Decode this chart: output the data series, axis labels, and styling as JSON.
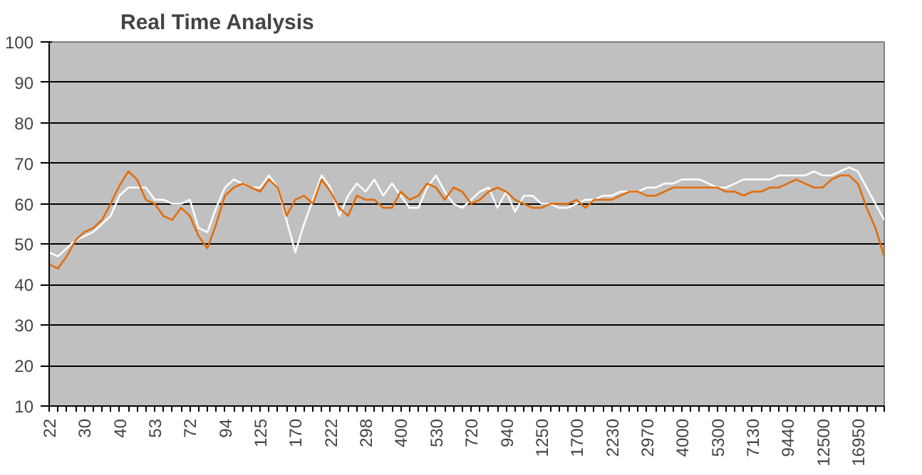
{
  "chart_data": {
    "type": "line",
    "title": "Real Time Analysis",
    "categories": [
      "22",
      null,
      null,
      null,
      "30",
      null,
      null,
      null,
      "40",
      null,
      null,
      null,
      "53",
      null,
      null,
      null,
      "72",
      null,
      null,
      null,
      "94",
      null,
      null,
      null,
      "125",
      null,
      null,
      null,
      "170",
      null,
      null,
      null,
      "222",
      null,
      null,
      null,
      "298",
      null,
      null,
      null,
      "400",
      null,
      null,
      null,
      "530",
      null,
      null,
      null,
      "720",
      null,
      null,
      null,
      "940",
      null,
      null,
      null,
      "1250",
      null,
      null,
      null,
      "1700",
      null,
      null,
      null,
      "2230",
      null,
      null,
      null,
      "2970",
      null,
      null,
      null,
      "4000",
      null,
      null,
      null,
      "5300",
      null,
      null,
      null,
      "7130",
      null,
      null,
      null,
      "9440",
      null,
      null,
      null,
      "12500",
      null,
      null,
      null,
      "16950",
      null,
      null,
      null
    ],
    "series": [
      {
        "color": "#ffffff",
        "values": [
          48,
          47,
          49,
          51,
          52,
          53,
          55,
          57,
          62,
          64,
          64,
          64,
          61,
          61,
          60,
          60,
          61,
          54,
          53,
          59,
          64,
          66,
          65,
          64,
          64,
          67,
          64,
          56,
          48,
          55,
          61,
          67,
          64,
          57,
          62,
          65,
          63,
          66,
          62,
          65,
          62,
          59,
          59,
          64,
          67,
          63,
          60,
          59,
          61,
          63,
          64,
          59,
          63,
          58,
          62,
          62,
          60,
          60,
          59,
          59,
          60,
          61,
          61,
          62,
          62,
          63,
          63,
          63,
          64,
          64,
          65,
          65,
          66,
          66,
          66,
          65,
          64,
          64,
          65,
          66,
          66,
          66,
          66,
          67,
          67,
          67,
          67,
          68,
          67,
          67,
          68,
          69,
          68,
          64,
          60,
          56
        ]
      },
      {
        "color": "#e36c09",
        "values": [
          45,
          44,
          47,
          51,
          53,
          54,
          56,
          60,
          64.5,
          68,
          66,
          61,
          60,
          57,
          56,
          59,
          57,
          52,
          49,
          55,
          62,
          64,
          65,
          64,
          63,
          66,
          64,
          57,
          61,
          62,
          60,
          66,
          63,
          59,
          57,
          62,
          61,
          61,
          59,
          59,
          63,
          61,
          62,
          65,
          64,
          61,
          64,
          63,
          60,
          61,
          63,
          64,
          63,
          61,
          60,
          59,
          59,
          60,
          60,
          60,
          61,
          59,
          61,
          61,
          61,
          62,
          63,
          63,
          62,
          62,
          63,
          64,
          64,
          64,
          64,
          64,
          64,
          63,
          63,
          62,
          63,
          63,
          64,
          64,
          65,
          66,
          65,
          64,
          64,
          66,
          67,
          67,
          65,
          59,
          54,
          47
        ]
      }
    ],
    "ylim": [
      10,
      100
    ],
    "yticks": [
      10,
      20,
      30,
      40,
      50,
      60,
      70,
      80,
      90,
      100
    ],
    "grid": "y",
    "marker": "none",
    "line_style": "solid"
  }
}
